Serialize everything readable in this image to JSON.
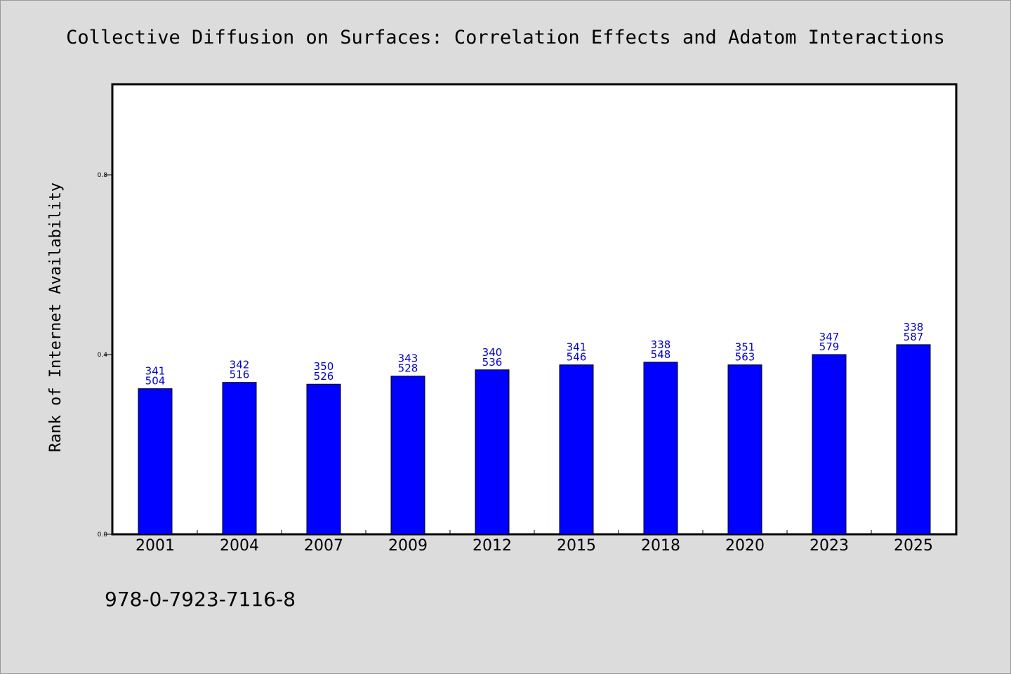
{
  "chart_data": {
    "type": "bar",
    "title": "Collective Diffusion on Surfaces: Correlation Effects and Adatom Interactions",
    "xlabel": "",
    "ylabel": "Rank of Internet Availability",
    "ylim": [
      0,
      1
    ],
    "yticks": [
      0.0,
      0.4,
      0.8
    ],
    "ytick_labels": [
      "0.0",
      "0.4",
      "0.8"
    ],
    "categories": [
      "2001",
      "2004",
      "2007",
      "2009",
      "2012",
      "2015",
      "2018",
      "2020",
      "2023",
      "2025"
    ],
    "values": [
      0.324,
      0.338,
      0.334,
      0.352,
      0.366,
      0.377,
      0.383,
      0.377,
      0.4,
      0.422
    ],
    "labels_top": [
      "341",
      "342",
      "350",
      "343",
      "340",
      "341",
      "338",
      "351",
      "347",
      "338"
    ],
    "labels_bottom": [
      "504",
      "516",
      "526",
      "528",
      "536",
      "546",
      "548",
      "563",
      "579",
      "587"
    ],
    "grid": false,
    "legend": "none"
  },
  "footer": {
    "isbn": "978-0-7923-7116-8"
  },
  "colors": {
    "background": "#dcdcdc",
    "plot_area": "#ffffff",
    "bar_fill": "#0000ff",
    "bar_edge": "#000000",
    "data_label": "#0000cc",
    "axis": "#000000"
  }
}
